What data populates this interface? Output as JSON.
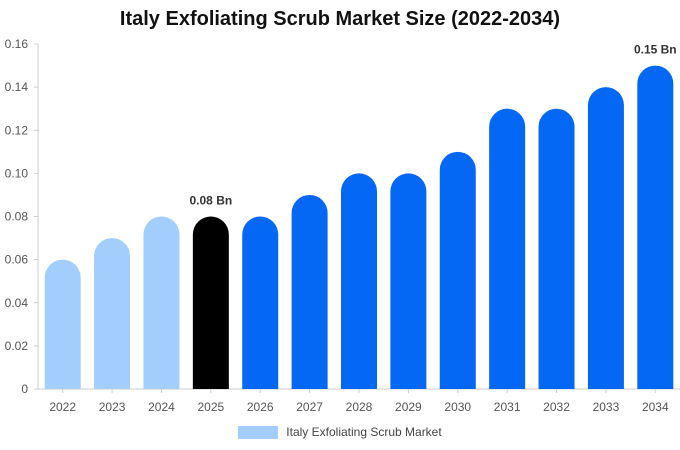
{
  "chart_data": {
    "type": "bar",
    "title": "Italy Exfoliating Scrub Market Size (2022-2034)",
    "xlabel": "",
    "ylabel": "",
    "categories": [
      "2022",
      "2023",
      "2024",
      "2025",
      "2026",
      "2027",
      "2028",
      "2029",
      "2030",
      "2031",
      "2032",
      "2033",
      "2034"
    ],
    "series": [
      {
        "name": "Italy Exfoliating Scrub Market",
        "values": [
          0.06,
          0.07,
          0.08,
          0.08,
          0.08,
          0.09,
          0.1,
          0.1,
          0.11,
          0.13,
          0.13,
          0.14,
          0.15
        ]
      }
    ],
    "ylim": [
      0,
      0.16
    ],
    "yticks": [
      "0",
      "0.02",
      "0.04",
      "0.06",
      "0.08",
      "0.10",
      "0.12",
      "0.14",
      "0.16"
    ],
    "data_labels": [
      {
        "category": "2025",
        "text": "0.08 Bn"
      },
      {
        "category": "2034",
        "text": "0.15 Bn"
      }
    ],
    "grid": false,
    "legend_position": "bottom-center",
    "colors": {
      "historic": "#a3cdfd",
      "current": "#000000",
      "forecast": "#0468f4",
      "legend": "#a3cdfd"
    },
    "historic_categories": [
      "2022",
      "2023",
      "2024"
    ],
    "current_category": "2025"
  }
}
